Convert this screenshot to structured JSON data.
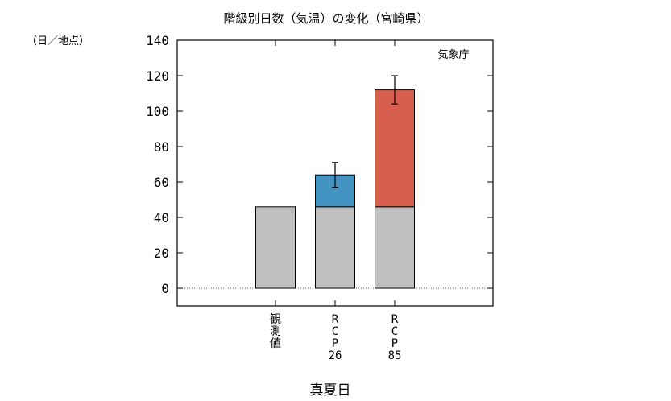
{
  "chart_data": {
    "type": "bar",
    "title": "階級別日数（気温）の変化（宮崎県）",
    "ylabel": "（日／地点）",
    "xlabel": "真夏日",
    "source": "気象庁",
    "ylim": [
      -10,
      140
    ],
    "yticks": [
      0,
      20,
      40,
      60,
      80,
      100,
      120,
      140
    ],
    "categories": [
      "観測値",
      "RCP26",
      "RCP85"
    ],
    "category_lines": [
      [
        "観",
        "測",
        "値"
      ],
      [
        "R",
        "C",
        "P",
        "26"
      ],
      [
        "R",
        "C",
        "P",
        "85"
      ]
    ],
    "series": [
      {
        "name": "",
        "values": [
          46,
          46,
          46
        ],
        "color": "#c0c0c0"
      },
      {
        "name": "",
        "values": [
          0,
          18,
          66
        ],
        "color": [
          "#c0c0c0",
          "#4393c3",
          "#d6604d"
        ]
      }
    ],
    "totals": [
      46,
      64,
      112
    ],
    "error_bars": [
      null,
      [
        57,
        71
      ],
      [
        104,
        120
      ]
    ],
    "grid": false,
    "zero_line": "dotted"
  }
}
